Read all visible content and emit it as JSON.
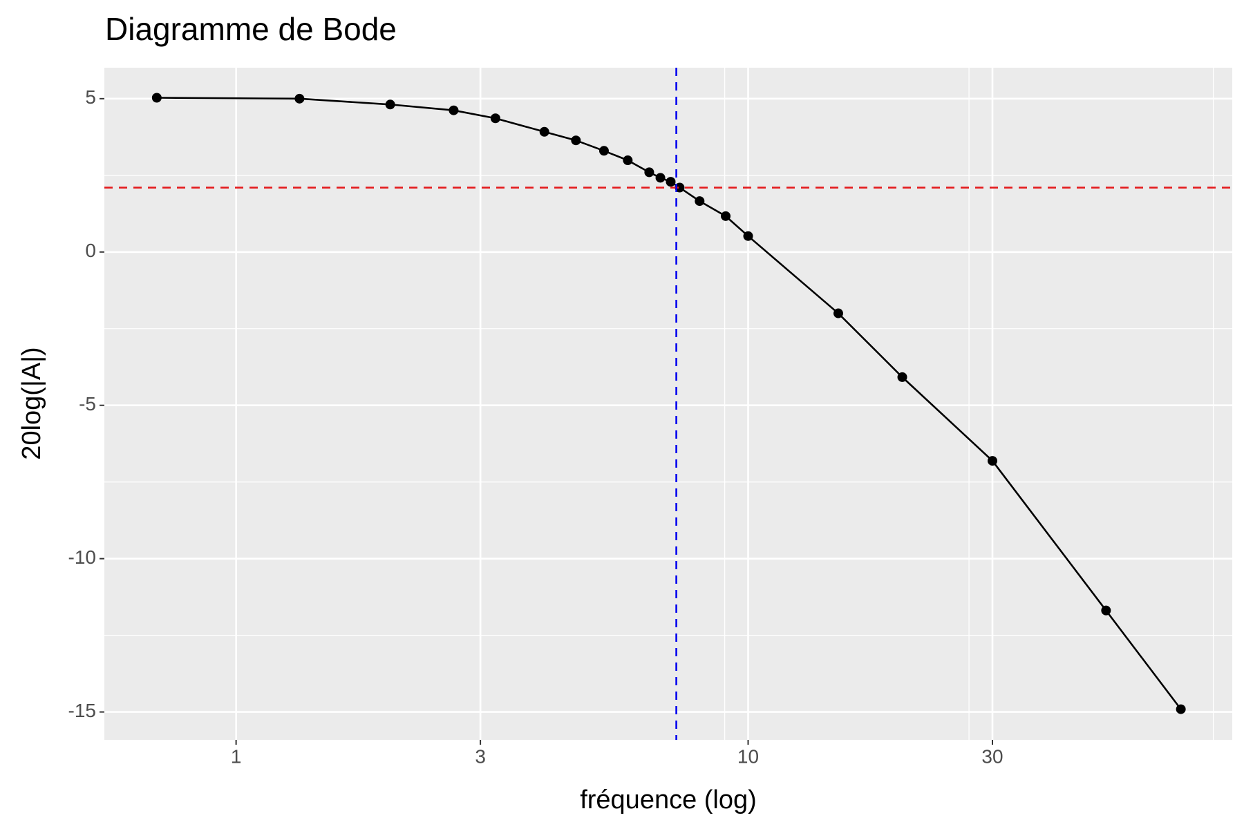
{
  "chart_data": {
    "type": "line",
    "title": "Diagramme de Bode",
    "x_label": "fréquence (log)",
    "y_label": "20log(|A|)",
    "x_scale": "log",
    "x": [
      0.7,
      1.33,
      2,
      2.66,
      3.21,
      4,
      4.61,
      5.23,
      5.82,
      6.41,
      6.74,
      7.06,
      7.35,
      8.04,
      9.04,
      10,
      15,
      20,
      30,
      50,
      70
    ],
    "series": [
      {
        "color": "#000000",
        "values": [
          5.03,
          5.0,
          4.81,
          4.62,
          4.36,
          3.92,
          3.64,
          3.3,
          2.99,
          2.6,
          2.42,
          2.29,
          2.1,
          1.66,
          1.17,
          0.52,
          -2.0,
          -4.08,
          -6.81,
          -11.69,
          -14.91
        ]
      }
    ],
    "xlim": [
      0.553,
      88.2
    ],
    "ylim": [
      -15.91,
      6.01
    ],
    "xticks": [
      1,
      3,
      10,
      30
    ],
    "yticks": [
      5,
      0,
      -5,
      -10,
      -15
    ],
    "reference_lines": [
      {
        "axis": "y",
        "value": 2.1,
        "color": "#e41a1c"
      },
      {
        "axis": "x",
        "value": 7.24,
        "color": "#0000ee"
      }
    ],
    "grid": true
  }
}
